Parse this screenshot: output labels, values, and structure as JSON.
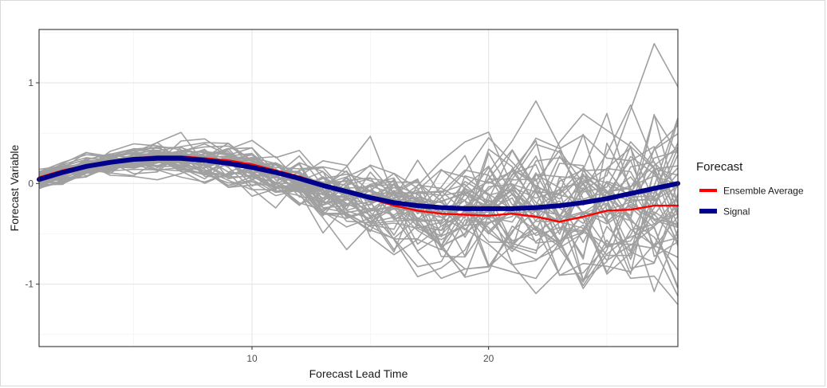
{
  "chart_data": {
    "type": "line",
    "title": "",
    "xlabel": "Forecast Lead Time",
    "ylabel": "Forecast Variable",
    "xlim": [
      1,
      28
    ],
    "ylim": [
      -1.62,
      1.53
    ],
    "x_ticks": [
      10,
      20
    ],
    "x_tick_labels": [
      "10",
      "20"
    ],
    "y_ticks": [
      1,
      0,
      -1
    ],
    "y_tick_labels": [
      "1",
      "0",
      "-1"
    ],
    "grid": true,
    "legend": {
      "title": "Forecast",
      "placement": "right"
    },
    "x": [
      1,
      2,
      3,
      4,
      5,
      6,
      7,
      8,
      9,
      10,
      11,
      12,
      13,
      14,
      15,
      16,
      17,
      18,
      19,
      20,
      21,
      22,
      23,
      24,
      25,
      26,
      27,
      28
    ],
    "series": [
      {
        "name": "Ensemble Average",
        "color": "#ff0000",
        "values": [
          0.06,
          0.13,
          0.18,
          0.22,
          0.25,
          0.27,
          0.27,
          0.25,
          0.23,
          0.19,
          0.13,
          0.07,
          -0.01,
          -0.08,
          -0.15,
          -0.22,
          -0.27,
          -0.3,
          -0.31,
          -0.32,
          -0.3,
          -0.33,
          -0.38,
          -0.33,
          -0.27,
          -0.26,
          -0.22,
          -0.22
        ]
      },
      {
        "name": "Signal",
        "color": "#00008b",
        "values": [
          0.04,
          0.11,
          0.17,
          0.21,
          0.24,
          0.25,
          0.25,
          0.23,
          0.2,
          0.16,
          0.11,
          0.05,
          -0.02,
          -0.08,
          -0.14,
          -0.19,
          -0.22,
          -0.24,
          -0.25,
          -0.25,
          -0.25,
          -0.24,
          -0.22,
          -0.19,
          -0.15,
          -0.1,
          -0.05,
          0.0
        ]
      }
    ],
    "ensemble": {
      "color": "#a0a0a0",
      "member_count": 50
    }
  }
}
